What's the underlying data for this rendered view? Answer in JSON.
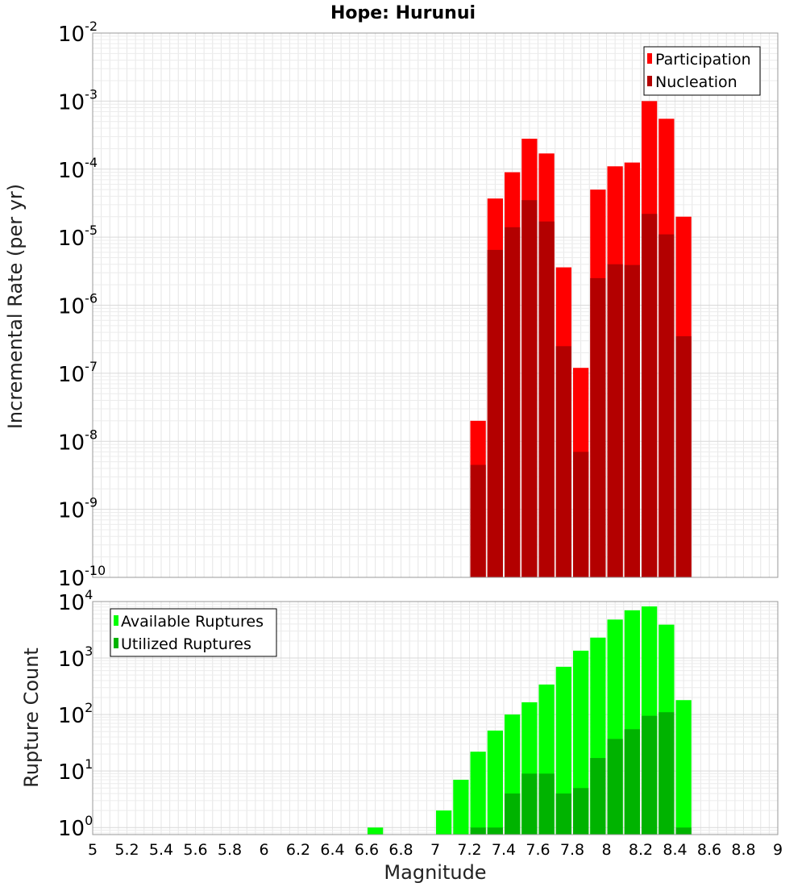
{
  "chart_data": [
    {
      "type": "bar",
      "title": "Hope: Hurunui",
      "xlabel": "",
      "ylabel": "Incremental Rate (per yr)",
      "yscale": "log",
      "ylim": [
        1e-10,
        0.01
      ],
      "xlim": [
        5,
        9
      ],
      "grid": true,
      "legend_position": "top-right",
      "x": [
        7.25,
        7.35,
        7.45,
        7.55,
        7.65,
        7.75,
        7.85,
        7.95,
        8.05,
        8.15,
        8.25,
        8.35,
        8.45
      ],
      "series": [
        {
          "name": "Participation",
          "color": "#ff0000",
          "values": [
            2e-08,
            3.7e-05,
            9e-05,
            0.00028,
            0.00017,
            3.6e-06,
            1.2e-07,
            5e-05,
            0.00011,
            0.000125,
            0.001,
            0.00055,
            2e-05
          ]
        },
        {
          "name": "Nucleation",
          "color": "#b30000",
          "values": [
            4.5e-09,
            6.5e-06,
            1.4e-05,
            3.5e-05,
            1.7e-05,
            2.5e-07,
            7e-09,
            2.5e-06,
            4e-06,
            3.9e-06,
            2.2e-05,
            1.1e-05,
            3.5e-07
          ]
        }
      ]
    },
    {
      "type": "bar",
      "title": "",
      "xlabel": "Magnitude",
      "ylabel": "Rupture Count",
      "yscale": "log",
      "ylim": [
        0.75,
        10000
      ],
      "xlim": [
        5,
        9
      ],
      "grid": true,
      "legend_position": "top-left",
      "x": [
        6.65,
        7.05,
        7.15,
        7.25,
        7.35,
        7.45,
        7.55,
        7.65,
        7.75,
        7.85,
        7.95,
        8.05,
        8.15,
        8.25,
        8.35,
        8.45
      ],
      "series": [
        {
          "name": "Available Ruptures",
          "color": "#00ff00",
          "values": [
            1,
            2,
            7,
            22,
            52,
            100,
            165,
            340,
            700,
            1350,
            2300,
            4800,
            7000,
            8200,
            3900,
            180
          ]
        },
        {
          "name": "Utilized Ruptures",
          "color": "#00b300",
          "values": [
            0,
            0,
            0,
            1,
            1,
            4,
            9,
            9,
            4,
            5,
            17,
            37,
            55,
            95,
            110,
            1
          ]
        }
      ]
    }
  ],
  "x_ticks": [
    "5",
    "5.2",
    "5.4",
    "5.6",
    "5.8",
    "6",
    "6.2",
    "6.4",
    "6.6",
    "6.8",
    "7",
    "7.2",
    "7.4",
    "7.6",
    "7.8",
    "8",
    "8.2",
    "8.4",
    "8.6",
    "8.8",
    "9"
  ],
  "top_y_ticks": [
    {
      "base": "10",
      "exp": "-2"
    },
    {
      "base": "10",
      "exp": "-3"
    },
    {
      "base": "10",
      "exp": "-4"
    },
    {
      "base": "10",
      "exp": "-5"
    },
    {
      "base": "10",
      "exp": "-6"
    },
    {
      "base": "10",
      "exp": "-7"
    },
    {
      "base": "10",
      "exp": "-8"
    },
    {
      "base": "10",
      "exp": "-9"
    },
    {
      "base": "10",
      "exp": "-10"
    }
  ],
  "bottom_y_ticks": [
    {
      "base": "10",
      "exp": "4"
    },
    {
      "base": "10",
      "exp": "3"
    },
    {
      "base": "10",
      "exp": "2"
    },
    {
      "base": "10",
      "exp": "1"
    },
    {
      "base": "10",
      "exp": "0"
    }
  ]
}
